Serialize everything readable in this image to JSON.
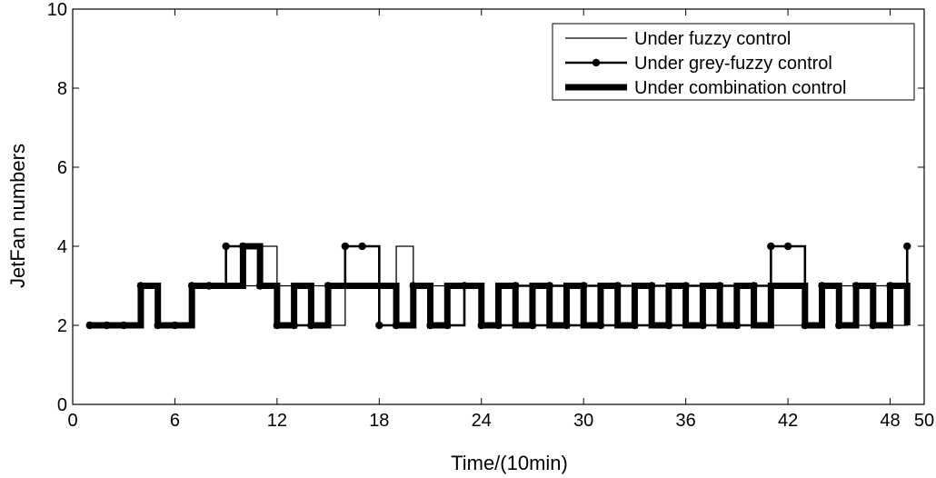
{
  "chart_data": {
    "type": "line",
    "title": "",
    "xlabel": "Time/(10min)",
    "ylabel": "JetFan numbers",
    "xlim": [
      0,
      50
    ],
    "ylim": [
      0,
      10
    ],
    "xticks": [
      0,
      6,
      12,
      18,
      24,
      30,
      36,
      42,
      48,
      50
    ],
    "yticks": [
      0,
      2,
      4,
      6,
      8,
      10
    ],
    "grid": false,
    "legend_position": "top-right",
    "step": true,
    "series": [
      {
        "name": "Under fuzzy control",
        "style": "thin-step",
        "x": [
          1,
          2,
          3,
          4,
          5,
          6,
          7,
          8,
          9,
          10,
          11,
          12,
          13,
          14,
          15,
          16,
          17,
          18,
          19,
          20,
          21,
          22,
          23,
          24,
          25,
          26,
          27,
          28,
          29,
          30,
          31,
          32,
          33,
          34,
          35,
          36,
          37,
          38,
          39,
          40,
          41,
          42,
          43,
          44,
          45,
          46,
          47,
          48,
          49
        ],
        "values": [
          2,
          2,
          2,
          3,
          2,
          2,
          3,
          3,
          3,
          3,
          4,
          3,
          2,
          3,
          2,
          3,
          3,
          3,
          4,
          3,
          3,
          2,
          3,
          2,
          2,
          3,
          2,
          3,
          2,
          3,
          2,
          3,
          2,
          2,
          3,
          2,
          3,
          3,
          2,
          3,
          2,
          2,
          2,
          3,
          3,
          2,
          3,
          2,
          3
        ]
      },
      {
        "name": "Under grey-fuzzy control",
        "style": "step-with-markers",
        "x": [
          1,
          2,
          3,
          4,
          5,
          6,
          7,
          8,
          9,
          10,
          11,
          12,
          13,
          14,
          15,
          16,
          17,
          18,
          19,
          20,
          21,
          22,
          23,
          24,
          25,
          26,
          27,
          28,
          29,
          30,
          31,
          32,
          33,
          34,
          35,
          36,
          37,
          38,
          39,
          40,
          41,
          42,
          43,
          44,
          45,
          46,
          47,
          48,
          49
        ],
        "values": [
          2,
          2,
          2,
          3,
          2,
          2,
          3,
          3,
          4,
          4,
          3,
          2,
          2,
          2,
          3,
          4,
          4,
          2,
          2,
          3,
          2,
          2,
          3,
          2,
          2,
          3,
          2,
          3,
          2,
          3,
          2,
          3,
          2,
          3,
          2,
          3,
          2,
          3,
          2,
          3,
          4,
          4,
          2,
          3,
          2,
          3,
          2,
          3,
          4
        ]
      },
      {
        "name": "Under combination control",
        "style": "thick-step",
        "x": [
          1,
          2,
          3,
          4,
          5,
          6,
          7,
          8,
          9,
          10,
          11,
          12,
          13,
          14,
          15,
          16,
          17,
          18,
          19,
          20,
          21,
          22,
          23,
          24,
          25,
          26,
          27,
          28,
          29,
          30,
          31,
          32,
          33,
          34,
          35,
          36,
          37,
          38,
          39,
          40,
          41,
          42,
          43,
          44,
          45,
          46,
          47,
          48,
          49
        ],
        "values": [
          2,
          2,
          2,
          3,
          2,
          2,
          3,
          3,
          3,
          4,
          3,
          2,
          3,
          2,
          3,
          3,
          3,
          3,
          2,
          3,
          2,
          3,
          3,
          2,
          3,
          2,
          3,
          2,
          3,
          2,
          3,
          2,
          3,
          2,
          3,
          2,
          3,
          2,
          3,
          2,
          3,
          3,
          2,
          3,
          2,
          3,
          2,
          3,
          2
        ]
      }
    ]
  }
}
